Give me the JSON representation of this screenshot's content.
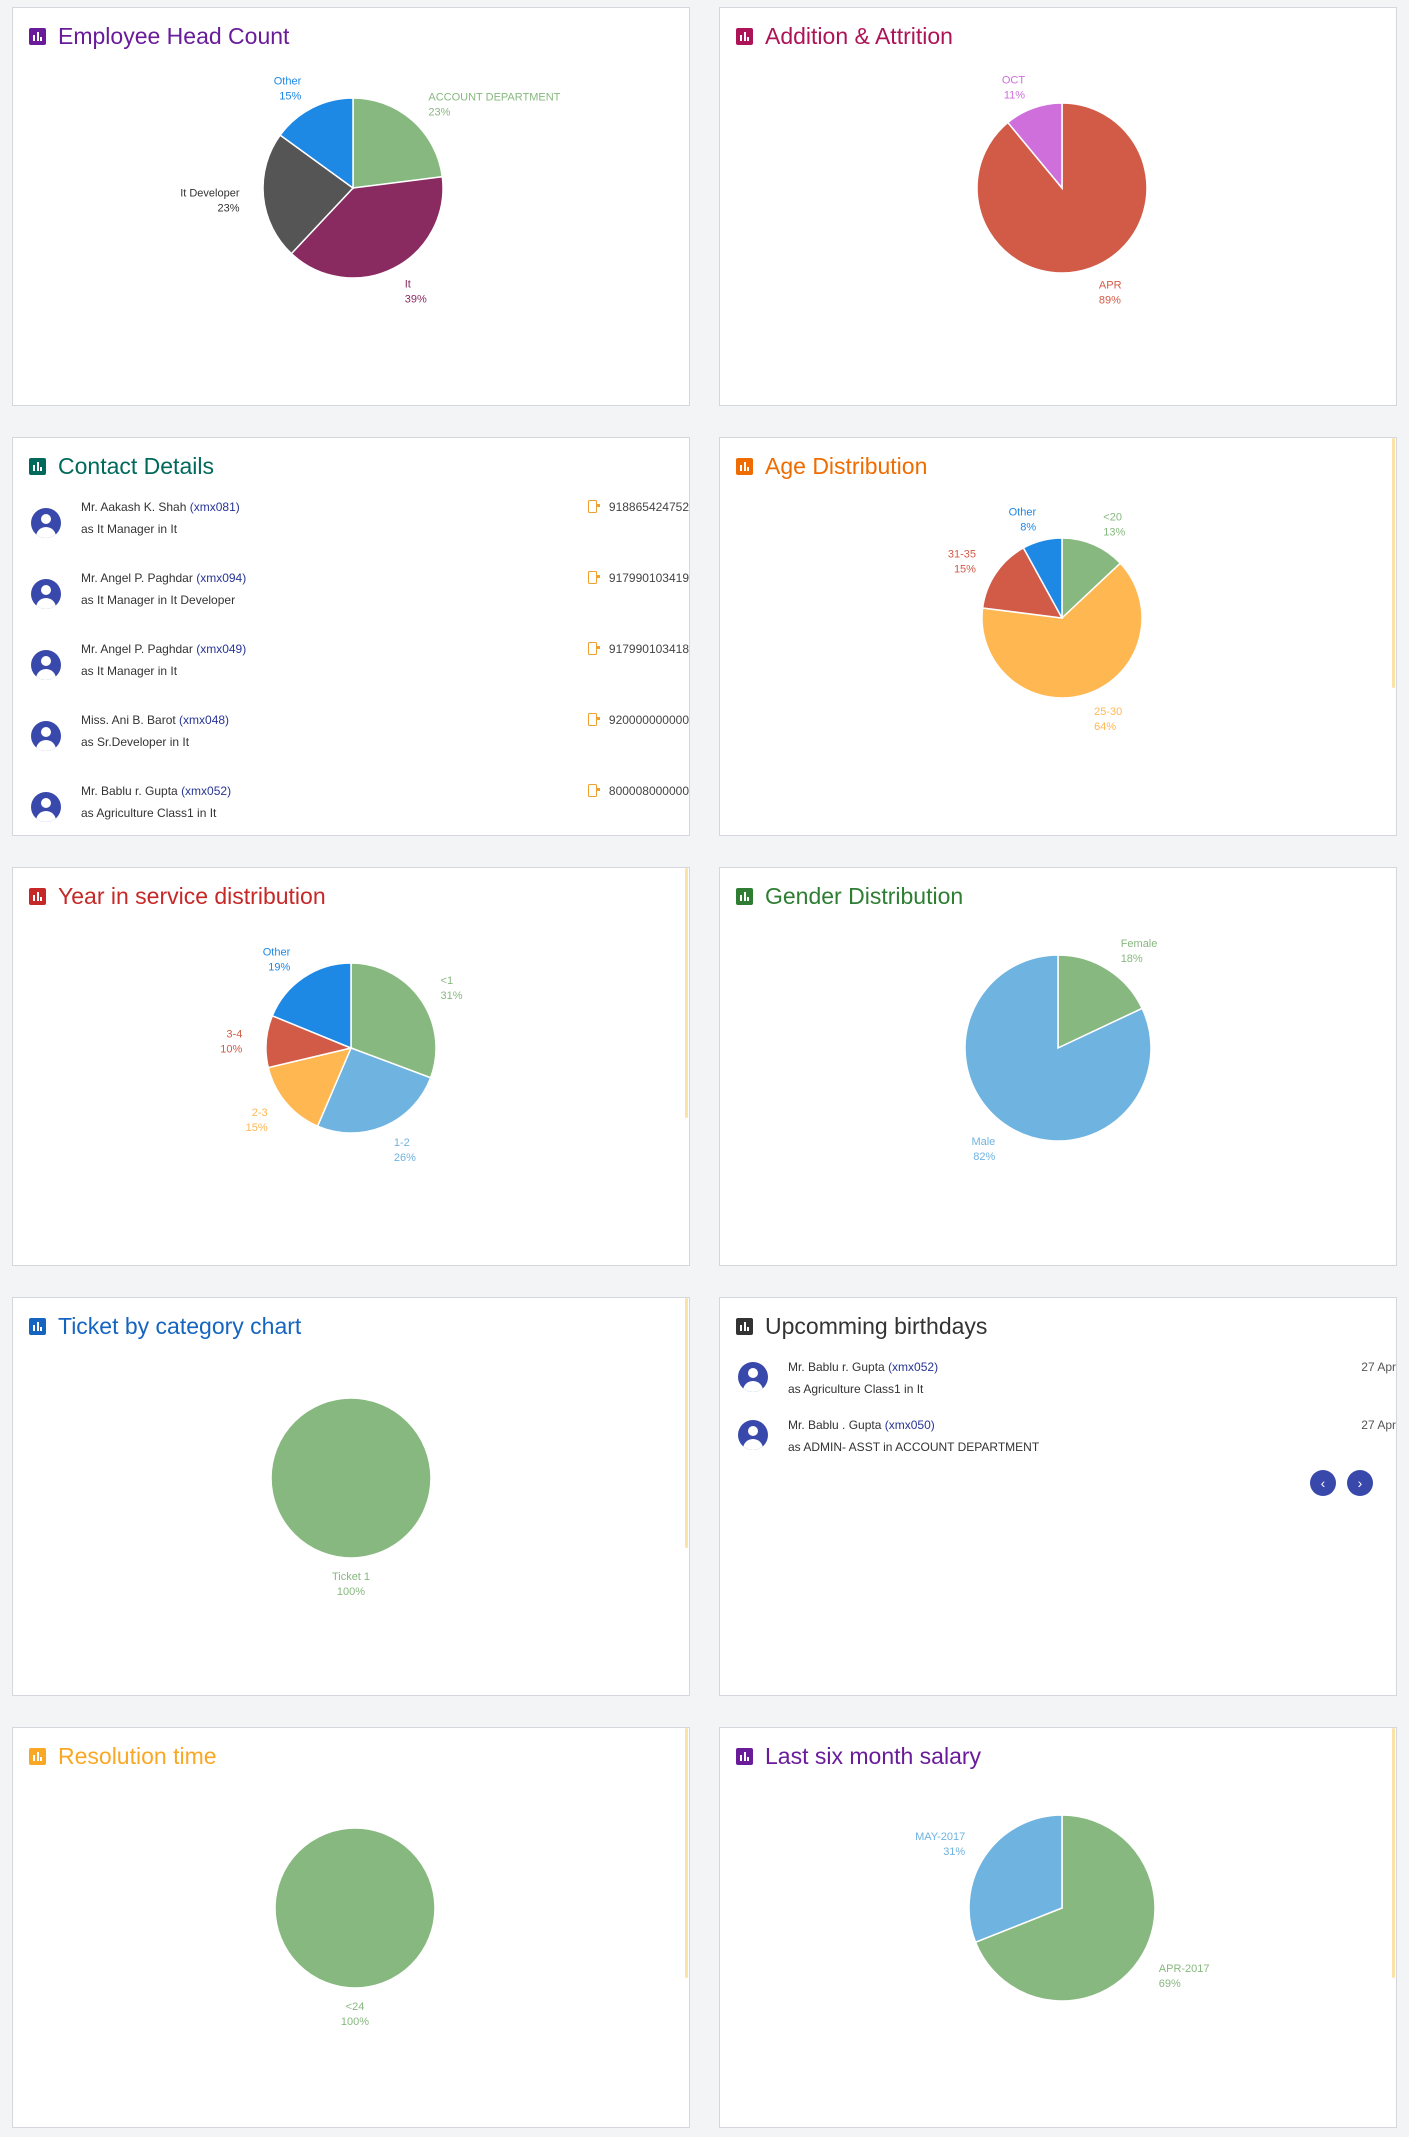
{
  "cards": {
    "head_count": {
      "title": "Employee Head Count",
      "color": "#6a1b9a"
    },
    "attrition": {
      "title": "Addition & Attrition",
      "color": "#ad1457"
    },
    "contacts": {
      "title": "Contact Details",
      "color": "#00695c"
    },
    "age": {
      "title": "Age Distribution",
      "color": "#ef6c00"
    },
    "service": {
      "title": "Year in service distribution",
      "color": "#c62828"
    },
    "gender": {
      "title": "Gender Distribution",
      "color": "#2e7d32"
    },
    "ticket": {
      "title": "Ticket by category chart",
      "color": "#1565c0"
    },
    "birthdays": {
      "title": "Upcomming birthdays",
      "color": "#333333"
    },
    "resolution": {
      "title": "Resolution time",
      "color": "#f9a825"
    },
    "salary": {
      "title": "Last six month salary",
      "color": "#6a1b9a"
    }
  },
  "contacts": [
    {
      "name": "Mr. Aakash K. Shah",
      "code": "(xmx081)",
      "role": "as It Manager in It",
      "phone": "918865424752"
    },
    {
      "name": "Mr. Angel P. Paghdar",
      "code": "(xmx094)",
      "role": "as It Manager in It Developer",
      "phone": "917990103419"
    },
    {
      "name": "Mr. Angel P. Paghdar",
      "code": "(xmx049)",
      "role": "as It Manager in It",
      "phone": "917990103418"
    },
    {
      "name": "Miss. Ani B. Barot",
      "code": "(xmx048)",
      "role": "as Sr.Developer in It",
      "phone": "920000000000"
    },
    {
      "name": "Mr. Bablu r. Gupta",
      "code": "(xmx052)",
      "role": "as Agriculture Class1 in It",
      "phone": "800008000000"
    }
  ],
  "birthdays": [
    {
      "name": "Mr. Bablu r. Gupta",
      "code": "(xmx052)",
      "role": "as Agriculture Class1 in  It",
      "date": "27 Apr"
    },
    {
      "name": "Mr. Bablu . Gupta",
      "code": "(xmx050)",
      "role": "as ADMIN- ASST in  ACCOUNT DEPARTMENT",
      "date": "27 Apr"
    }
  ],
  "birthday_nav": {
    "prev": "‹",
    "next": "›"
  },
  "chart_data": [
    {
      "type": "pie",
      "id": "head_count",
      "title": "Employee Head Count",
      "categories": [
        "ACCOUNT DEPARTMENT",
        "It",
        "It Developer",
        "Other"
      ],
      "values": [
        23,
        39,
        23,
        15
      ],
      "labels": [
        "23%",
        "39%",
        "23%",
        "15%"
      ],
      "colors": [
        "#87b87f",
        "#892a61",
        "#555555",
        "#1e88e5"
      ]
    },
    {
      "type": "pie",
      "id": "attrition",
      "title": "Addition & Attrition",
      "categories": [
        "APR",
        "OCT"
      ],
      "values": [
        89,
        11
      ],
      "labels": [
        "89%",
        "11%"
      ],
      "colors": [
        "#d15b47",
        "#ce6fdb"
      ]
    },
    {
      "type": "pie",
      "id": "age",
      "title": "Age Distribution",
      "categories": [
        "<20",
        "25-30",
        "31-35",
        "Other"
      ],
      "values": [
        13,
        64,
        15,
        8
      ],
      "labels": [
        "13%",
        "64%",
        "15%",
        "8%"
      ],
      "colors": [
        "#87b87f",
        "#ffb752",
        "#d15b47",
        "#1e88e5"
      ]
    },
    {
      "type": "pie",
      "id": "service",
      "title": "Year in service distribution",
      "categories": [
        "<1",
        "1-2",
        "2-3",
        "3-4",
        "Other"
      ],
      "values": [
        31,
        26,
        15,
        10,
        19
      ],
      "labels": [
        "31%",
        "26%",
        "15%",
        "10%",
        "19%"
      ],
      "colors": [
        "#87b87f",
        "#6fb3e0",
        "#ffb752",
        "#d15b47",
        "#1e88e5"
      ]
    },
    {
      "type": "pie",
      "id": "gender",
      "title": "Gender Distribution",
      "categories": [
        "Female",
        "Male"
      ],
      "values": [
        18,
        82
      ],
      "labels": [
        "18%",
        "82%"
      ],
      "colors": [
        "#87b87f",
        "#6fb3e0"
      ]
    },
    {
      "type": "pie",
      "id": "ticket",
      "title": "Ticket by category chart",
      "categories": [
        "Ticket 1"
      ],
      "values": [
        100
      ],
      "labels": [
        "100%"
      ],
      "colors": [
        "#87b87f"
      ]
    },
    {
      "type": "pie",
      "id": "resolution",
      "title": "Resolution time",
      "categories": [
        "<24"
      ],
      "values": [
        100
      ],
      "labels": [
        "100%"
      ],
      "colors": [
        "#87b87f"
      ]
    },
    {
      "type": "pie",
      "id": "salary",
      "title": "Last six month salary",
      "categories": [
        "APR-2017",
        "MAY-2017"
      ],
      "values": [
        69,
        31
      ],
      "labels": [
        "69%",
        "31%"
      ],
      "colors": [
        "#87b87f",
        "#6fb3e0"
      ]
    }
  ]
}
